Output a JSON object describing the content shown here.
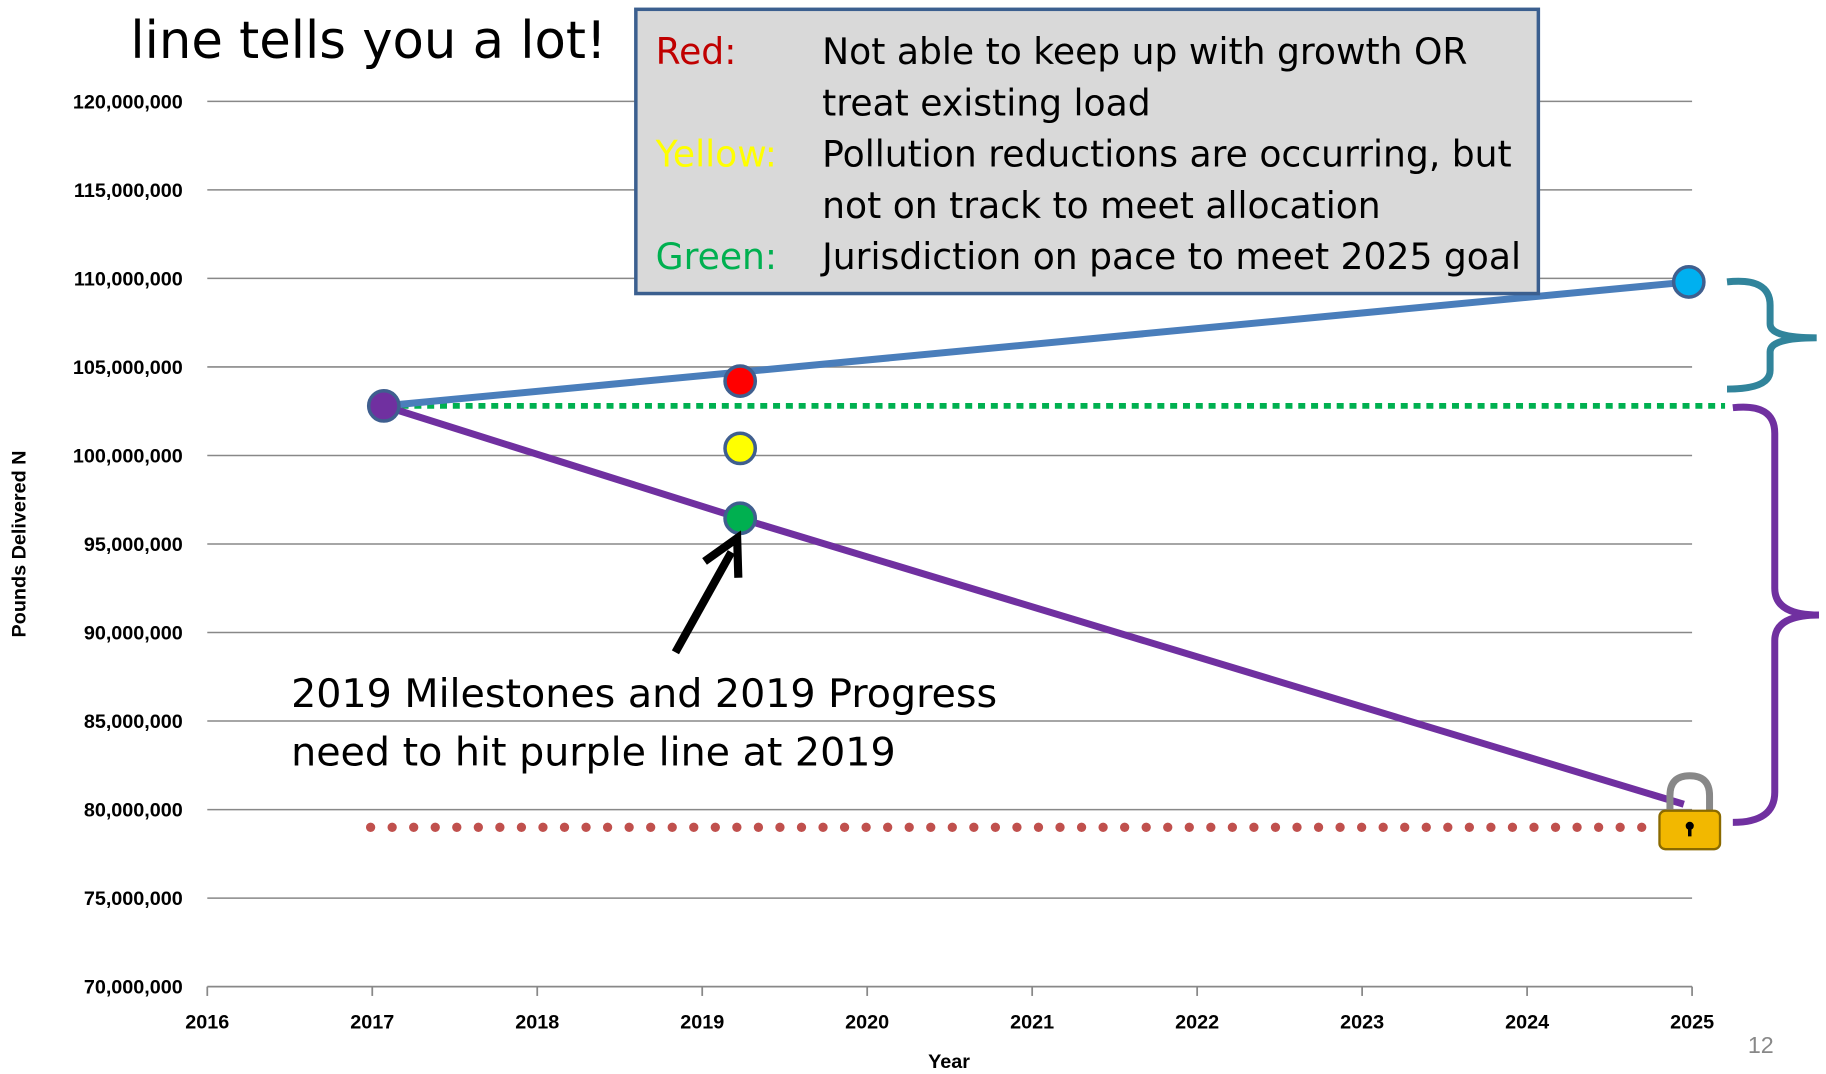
{
  "chart_data": {
    "type": "line",
    "title": "line tells you a lot!",
    "xlabel": "Year",
    "ylabel": "Pounds Delivered N",
    "page_number": "12",
    "xlim": [
      2016,
      2025
    ],
    "xticks": [
      2016,
      2017,
      2018,
      2019,
      2020,
      2021,
      2022,
      2023,
      2024,
      2025
    ],
    "ylim": [
      70000000,
      120000000
    ],
    "yticks": [
      {
        "value": 70000000,
        "label": "70,000,000"
      },
      {
        "value": 75000000,
        "label": "75,000,000"
      },
      {
        "value": 80000000,
        "label": "80,000,000"
      },
      {
        "value": 85000000,
        "label": "85,000,000"
      },
      {
        "value": 90000000,
        "label": "90,000,000"
      },
      {
        "value": 95000000,
        "label": "95,000,000"
      },
      {
        "value": 100000000,
        "label": "100,000,000"
      },
      {
        "value": 105000000,
        "label": "105,000,000"
      },
      {
        "value": 110000000,
        "label": "110,000,000"
      },
      {
        "value": 115000000,
        "label": "115,000,000"
      },
      {
        "value": 120000000,
        "label": "120,000,000"
      }
    ],
    "grid": true,
    "series": [
      {
        "color": "#00b050",
        "style": "dashed",
        "x": [
          2017.1,
          2025.2
        ],
        "values": [
          102800000,
          102800000
        ]
      },
      {
        "color": "#c0504d",
        "style": "dotted",
        "x": [
          2016.99,
          2024.76
        ],
        "values": [
          79000000,
          79000000
        ]
      },
      {
        "color": "#4a7ebb",
        "style": "solid",
        "x": [
          2017.07,
          2024.98
        ],
        "values": [
          102800000,
          109800000
        ]
      },
      {
        "color": "#7030a0",
        "style": "solid",
        "x": [
          2017.07,
          2019.23,
          2024.95
        ],
        "values": [
          102800000,
          96450000,
          80300000
        ]
      },
      {
        "style": "markers",
        "colors": [
          "#7030a0",
          "#ff0000",
          "#ffff00",
          "#00b050",
          "#00b0f0"
        ],
        "x": [
          2017.07,
          2019.23,
          2019.23,
          2019.23,
          2024.98
        ],
        "values": [
          102800000,
          104200000,
          100400000,
          96450000,
          109800000
        ]
      }
    ],
    "key_box": [
      {
        "label": "Red:",
        "color": "#c00000",
        "lines": [
          "Not able to keep up with growth OR",
          "treat existing load"
        ]
      },
      {
        "label": "Yellow:",
        "color": "#ffff00",
        "lines": [
          "Pollution reductions are occurring, but",
          "not on track to meet allocation"
        ]
      },
      {
        "label": "Green:",
        "color": "#00b050",
        "lines": [
          "Jurisdiction on pace to meet 2025 goal"
        ]
      }
    ],
    "annotation": [
      "2019 Milestones and 2019 Progress",
      "need to hit purple line at 2019"
    ]
  }
}
